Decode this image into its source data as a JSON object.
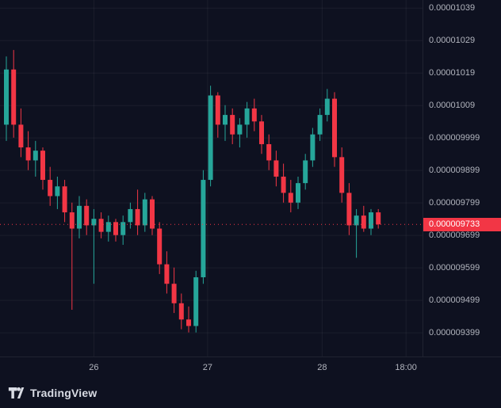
{
  "attribution": {
    "label": "TradingView"
  },
  "colors": {
    "background": "#0e1120",
    "grid": "rgba(255,255,255,0.055)",
    "axis_text": "#b2b5be",
    "up": "#26a69a",
    "down": "#f23645",
    "current_price_line": "#f23645",
    "current_price_badge_bg": "#f23645",
    "current_price_badge_text": "#ffffff",
    "attribution_text": "#d8dbe3"
  },
  "chart_data": {
    "type": "candlestick",
    "title": "",
    "price_unit_multiplier": 1e-06,
    "y_domain": [
      9.326,
      10.424
    ],
    "grid": true,
    "price_ticks": [
      {
        "value": 10.399,
        "label": "0.00001039"
      },
      {
        "value": 10.299,
        "label": "0.00001029"
      },
      {
        "value": 10.199,
        "label": "0.00001019"
      },
      {
        "value": 10.099,
        "label": "0.00001009"
      },
      {
        "value": 9.999,
        "label": "0.000009999"
      },
      {
        "value": 9.899,
        "label": "0.000009899"
      },
      {
        "value": 9.799,
        "label": "0.000009799"
      },
      {
        "value": 9.699,
        "label": "0.000009699"
      },
      {
        "value": 9.599,
        "label": "0.000009599"
      },
      {
        "value": 9.499,
        "label": "0.000009499"
      },
      {
        "value": 9.399,
        "label": "0.000009399"
      }
    ],
    "time_ticks": [
      {
        "index": 12.0,
        "label": "26"
      },
      {
        "index": 27.6,
        "label": "27"
      },
      {
        "index": 43.3,
        "label": "28"
      },
      {
        "index": 54.8,
        "label": "18:00"
      }
    ],
    "current_price": {
      "value": 9.733,
      "label": "0.000009733"
    },
    "candles": [
      [
        10.04,
        10.25,
        9.99,
        10.21
      ],
      [
        10.21,
        10.27,
        10.0,
        10.04
      ],
      [
        10.04,
        10.09,
        9.94,
        9.97
      ],
      [
        9.97,
        10.02,
        9.9,
        9.93
      ],
      [
        9.93,
        9.99,
        9.88,
        9.96
      ],
      [
        9.96,
        9.97,
        9.84,
        9.87
      ],
      [
        9.87,
        9.91,
        9.79,
        9.82
      ],
      [
        9.82,
        9.88,
        9.78,
        9.85
      ],
      [
        9.85,
        9.87,
        9.74,
        9.77
      ],
      [
        9.77,
        9.8,
        9.47,
        9.72
      ],
      [
        9.72,
        9.82,
        9.69,
        9.79
      ],
      [
        9.79,
        9.81,
        9.7,
        9.73
      ],
      [
        9.73,
        9.78,
        9.55,
        9.75
      ],
      [
        9.75,
        9.77,
        9.69,
        9.71
      ],
      [
        9.71,
        9.76,
        9.68,
        9.74
      ],
      [
        9.74,
        9.75,
        9.68,
        9.7
      ],
      [
        9.7,
        9.76,
        9.67,
        9.74
      ],
      [
        9.74,
        9.8,
        9.72,
        9.78
      ],
      [
        9.78,
        9.84,
        9.7,
        9.73
      ],
      [
        9.73,
        9.83,
        9.71,
        9.81
      ],
      [
        9.81,
        9.82,
        9.7,
        9.72
      ],
      [
        9.72,
        9.74,
        9.58,
        9.61
      ],
      [
        9.61,
        9.65,
        9.52,
        9.55
      ],
      [
        9.55,
        9.6,
        9.46,
        9.49
      ],
      [
        9.49,
        9.52,
        9.41,
        9.44
      ],
      [
        9.44,
        9.48,
        9.4,
        9.42
      ],
      [
        9.42,
        9.59,
        9.4,
        9.57
      ],
      [
        9.57,
        9.9,
        9.55,
        9.87
      ],
      [
        9.87,
        10.16,
        9.85,
        10.13
      ],
      [
        10.13,
        10.14,
        10.0,
        10.04
      ],
      [
        10.04,
        10.1,
        9.99,
        10.07
      ],
      [
        10.07,
        10.09,
        9.98,
        10.01
      ],
      [
        10.01,
        10.06,
        9.97,
        10.04
      ],
      [
        10.04,
        10.11,
        10.0,
        10.09
      ],
      [
        10.09,
        10.12,
        10.02,
        10.05
      ],
      [
        10.05,
        10.07,
        9.95,
        9.98
      ],
      [
        9.98,
        10.01,
        9.9,
        9.93
      ],
      [
        9.93,
        9.96,
        9.85,
        9.88
      ],
      [
        9.88,
        9.92,
        9.8,
        9.83
      ],
      [
        9.83,
        9.87,
        9.77,
        9.8
      ],
      [
        9.8,
        9.88,
        9.78,
        9.86
      ],
      [
        9.86,
        9.95,
        9.84,
        9.93
      ],
      [
        9.93,
        10.03,
        9.91,
        10.01
      ],
      [
        10.01,
        10.09,
        9.99,
        10.07
      ],
      [
        10.07,
        10.15,
        10.05,
        10.12
      ],
      [
        10.12,
        10.14,
        9.91,
        9.94
      ],
      [
        9.94,
        9.97,
        9.8,
        9.83
      ],
      [
        9.83,
        9.86,
        9.7,
        9.73
      ],
      [
        9.73,
        9.78,
        9.63,
        9.76
      ],
      [
        9.76,
        9.79,
        9.71,
        9.72
      ],
      [
        9.72,
        9.78,
        9.7,
        9.77
      ],
      [
        9.77,
        9.78,
        9.72,
        9.733
      ]
    ]
  }
}
